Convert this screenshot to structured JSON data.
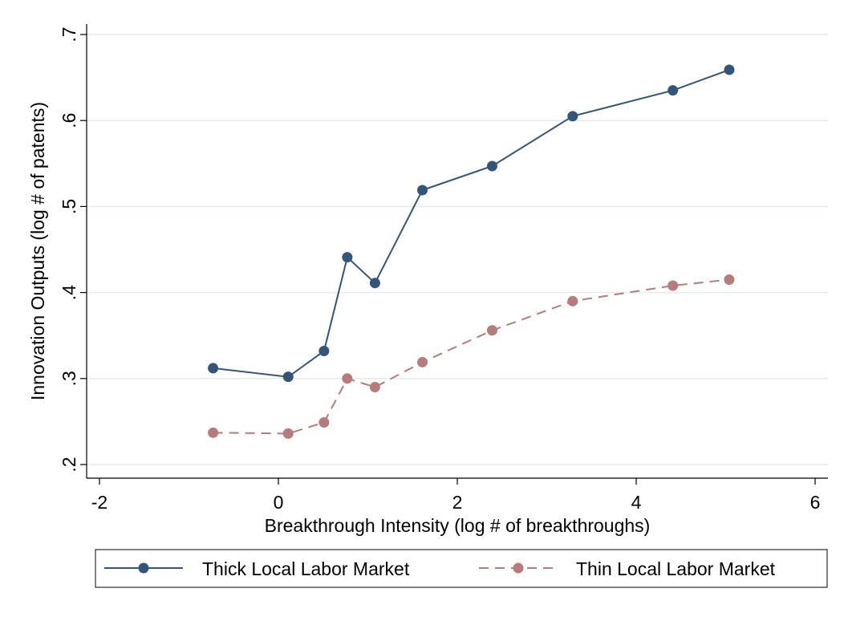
{
  "chart_data": {
    "type": "line",
    "title": "",
    "xlabel": "Breakthrough Intensity (log # of breakthroughs)",
    "ylabel": "Innovation Outputs (log # of patents)",
    "xlim": [
      -2,
      6
    ],
    "ylim": [
      0.2,
      0.7
    ],
    "xticks": [
      -2,
      0,
      2,
      4,
      6
    ],
    "xtick_labels": [
      "-2",
      "0",
      "2",
      "4",
      "6"
    ],
    "yticks": [
      0.2,
      0.3,
      0.4,
      0.5,
      0.6,
      0.7
    ],
    "ytick_labels": [
      ".2",
      ".3",
      ".4",
      ".5",
      ".6",
      ".7"
    ],
    "grid": true,
    "legend_position": "bottom",
    "series": [
      {
        "name": "Thick Local Labor Market",
        "color": "#34557a",
        "style": "solid",
        "x": [
          -0.73,
          0.11,
          0.51,
          0.77,
          1.08,
          1.61,
          2.39,
          3.29,
          4.41,
          5.04
        ],
        "y": [
          0.312,
          0.302,
          0.332,
          0.441,
          0.411,
          0.519,
          0.547,
          0.605,
          0.635,
          0.659
        ]
      },
      {
        "name": "Thin Local Labor Market",
        "color": "#b77b7b",
        "style": "dashed",
        "x": [
          -0.73,
          0.11,
          0.51,
          0.77,
          1.08,
          1.61,
          2.39,
          3.29,
          4.41,
          5.04
        ],
        "y": [
          0.237,
          0.236,
          0.249,
          0.3,
          0.29,
          0.319,
          0.356,
          0.39,
          0.408,
          0.415
        ]
      }
    ]
  }
}
